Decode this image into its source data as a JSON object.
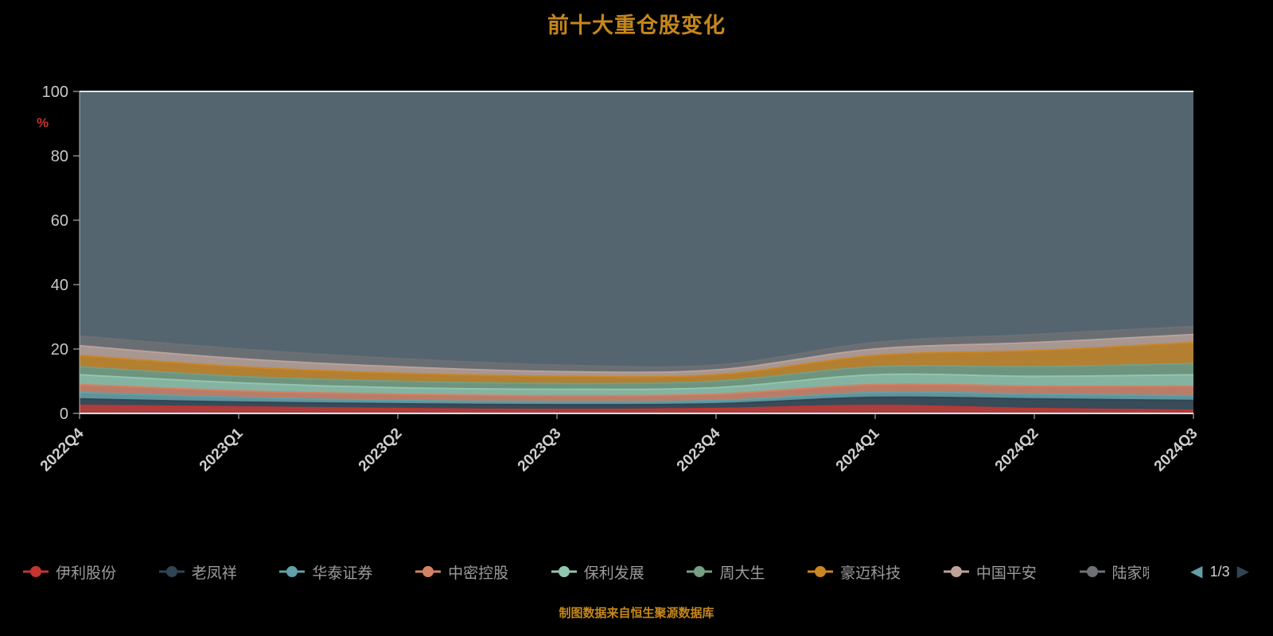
{
  "title": "前十大重仓股变化",
  "footer": "制图数据来自恒生聚源数据库",
  "legend_pager": {
    "current": "1/3",
    "prev_icon": "◀",
    "next_icon": "▶"
  },
  "colors": {
    "title": "#c5871a",
    "footer": "#c5871a",
    "axis_label": "#cfcfcf",
    "y_unit": "#c23531",
    "plot_remainder": "#546570"
  },
  "chart_data": {
    "type": "area",
    "stacked": true,
    "title": "前十大重仓股变化",
    "ylabel": "%",
    "ylim": [
      0,
      100
    ],
    "y_ticks": [
      0,
      20,
      40,
      60,
      80,
      100
    ],
    "grid": false,
    "legend_position": "bottom",
    "categories": [
      "2022Q4",
      "2023Q1",
      "2023Q2",
      "2023Q3",
      "2023Q4",
      "2024Q1",
      "2024Q2",
      "2024Q3"
    ],
    "series": [
      {
        "name": "伊利股份",
        "color": "#c23531",
        "values": [
          2.5,
          2.0,
          1.5,
          1.2,
          1.5,
          2.5,
          1.5,
          1.0
        ]
      },
      {
        "name": "老凤祥",
        "color": "#2f4554",
        "values": [
          2.0,
          1.5,
          1.5,
          1.5,
          1.5,
          2.5,
          3.0,
          3.0
        ]
      },
      {
        "name": "华泰证券",
        "color": "#61a0a8",
        "values": [
          2.0,
          1.5,
          1.0,
          1.0,
          1.0,
          1.5,
          1.5,
          1.5
        ]
      },
      {
        "name": "中密控股",
        "color": "#d48265",
        "values": [
          2.5,
          2.0,
          2.0,
          1.8,
          2.0,
          2.5,
          2.5,
          3.0
        ]
      },
      {
        "name": "保利发展",
        "color": "#91c7ae",
        "values": [
          3.0,
          2.5,
          2.0,
          2.0,
          2.0,
          3.0,
          3.0,
          3.5
        ]
      },
      {
        "name": "周大生",
        "color": "#749f83",
        "values": [
          2.5,
          2.0,
          2.0,
          1.8,
          2.0,
          2.5,
          3.0,
          3.5
        ]
      },
      {
        "name": "豪迈科技",
        "color": "#ca8622",
        "values": [
          3.5,
          3.0,
          2.5,
          2.2,
          2.0,
          3.5,
          5.0,
          6.5
        ]
      },
      {
        "name": "中国平安",
        "color": "#bda29a",
        "values": [
          3.0,
          2.5,
          2.0,
          1.5,
          1.5,
          2.0,
          2.5,
          2.5
        ]
      },
      {
        "name": "陆家嘴",
        "color": "#6e7074",
        "values": [
          3.0,
          3.0,
          2.5,
          2.0,
          1.5,
          2.0,
          2.5,
          2.5
        ]
      }
    ]
  }
}
